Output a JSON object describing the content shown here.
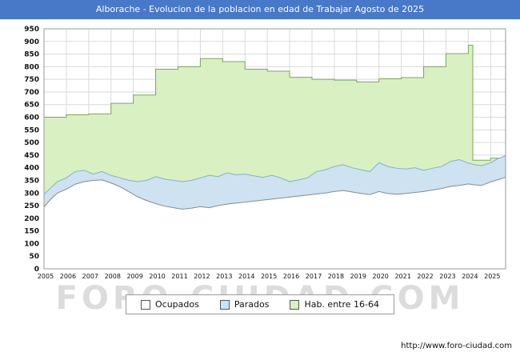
{
  "title_bar": {
    "text": "Alborache - Evolucion de la poblacion en edad de Trabajar Agosto de 2025",
    "bg": "#4878c8"
  },
  "watermark": "FORO-CIUDAD.COM",
  "footer": {
    "url": "http://www.foro-ciudad.com"
  },
  "legend": [
    {
      "label": "Ocupados",
      "fill": "#ffffff"
    },
    {
      "label": "Parados",
      "fill": "#cfe2f2"
    },
    {
      "label": "Hab. entre 16-64",
      "fill": "#d9f0c3"
    }
  ],
  "chart_data": {
    "type": "area",
    "title": "Alborache - Evolucion de la poblacion en edad de Trabajar Agosto de 2025",
    "xlabel": "",
    "ylabel": "",
    "ylim": [
      0,
      950
    ],
    "y_tick_step": 50,
    "x_range": [
      2005,
      2025.67
    ],
    "x_ticks": [
      2005,
      2006,
      2007,
      2008,
      2009,
      2010,
      2011,
      2012,
      2013,
      2014,
      2015,
      2016,
      2017,
      2018,
      2019,
      2020,
      2021,
      2022,
      2023,
      2024,
      2025
    ],
    "grid": true,
    "grid_color": "#d9d9d9",
    "border_color": "#9a9a9a",
    "legend_position": "bottom",
    "series": [
      {
        "name": "Hab. entre 16-64",
        "fill": "#d9f0c3",
        "line": "#7aa854",
        "step": true,
        "x": [
          2005,
          2006,
          2007,
          2008,
          2009,
          2010,
          2011,
          2012,
          2013,
          2014,
          2015,
          2016,
          2017,
          2018,
          2019,
          2020,
          2021,
          2022,
          2023,
          2024,
          2024.2,
          2025,
          2025.67
        ],
        "values": [
          600,
          610,
          613,
          655,
          688,
          790,
          800,
          832,
          820,
          790,
          782,
          758,
          750,
          747,
          740,
          752,
          757,
          800,
          852,
          885,
          430,
          438,
          445
        ]
      },
      {
        "name": "Parados",
        "fill": "#cfe2f2",
        "line": "#7fb0d8",
        "step": false,
        "x": [
          2005.0,
          2005.3,
          2005.6,
          2006.0,
          2006.4,
          2006.8,
          2007.2,
          2007.6,
          2008.0,
          2008.4,
          2008.8,
          2009.2,
          2009.6,
          2010.0,
          2010.4,
          2010.8,
          2011.2,
          2011.6,
          2012.0,
          2012.4,
          2012.8,
          2013.2,
          2013.6,
          2014.0,
          2014.4,
          2014.8,
          2015.2,
          2015.6,
          2016.0,
          2016.4,
          2016.8,
          2017.2,
          2017.6,
          2018.0,
          2018.4,
          2018.8,
          2019.2,
          2019.6,
          2020.0,
          2020.4,
          2020.8,
          2021.2,
          2021.6,
          2022.0,
          2022.4,
          2022.8,
          2023.2,
          2023.6,
          2024.0,
          2024.3,
          2024.6,
          2025.0,
          2025.3,
          2025.67
        ],
        "values": [
          295,
          320,
          345,
          360,
          385,
          390,
          375,
          385,
          370,
          360,
          350,
          345,
          350,
          365,
          355,
          350,
          345,
          350,
          360,
          370,
          365,
          380,
          372,
          375,
          368,
          362,
          370,
          360,
          345,
          352,
          360,
          385,
          392,
          405,
          412,
          400,
          392,
          385,
          420,
          405,
          398,
          395,
          400,
          390,
          398,
          405,
          425,
          432,
          418,
          412,
          408,
          420,
          435,
          448
        ]
      },
      {
        "name": "Ocupados",
        "fill": "#ffffff",
        "line": "#8a8a8a",
        "step": false,
        "x": [
          2005.0,
          2005.3,
          2005.6,
          2006.0,
          2006.4,
          2006.8,
          2007.2,
          2007.6,
          2008.0,
          2008.4,
          2008.8,
          2009.2,
          2009.6,
          2010.0,
          2010.4,
          2010.8,
          2011.2,
          2011.6,
          2012.0,
          2012.4,
          2012.8,
          2013.2,
          2013.6,
          2014.0,
          2014.4,
          2014.8,
          2015.2,
          2015.6,
          2016.0,
          2016.4,
          2016.8,
          2017.2,
          2017.6,
          2018.0,
          2018.4,
          2018.8,
          2019.2,
          2019.6,
          2020.0,
          2020.4,
          2020.8,
          2021.2,
          2021.6,
          2022.0,
          2022.4,
          2022.8,
          2023.2,
          2023.6,
          2024.0,
          2024.3,
          2024.6,
          2025.0,
          2025.3,
          2025.67
        ],
        "values": [
          245,
          275,
          300,
          315,
          335,
          345,
          350,
          352,
          340,
          325,
          305,
          285,
          270,
          258,
          248,
          242,
          236,
          240,
          246,
          242,
          250,
          256,
          260,
          264,
          268,
          272,
          276,
          280,
          284,
          288,
          292,
          296,
          300,
          306,
          310,
          304,
          298,
          294,
          306,
          298,
          295,
          298,
          302,
          306,
          312,
          318,
          326,
          330,
          336,
          332,
          330,
          344,
          352,
          362
        ]
      }
    ]
  }
}
